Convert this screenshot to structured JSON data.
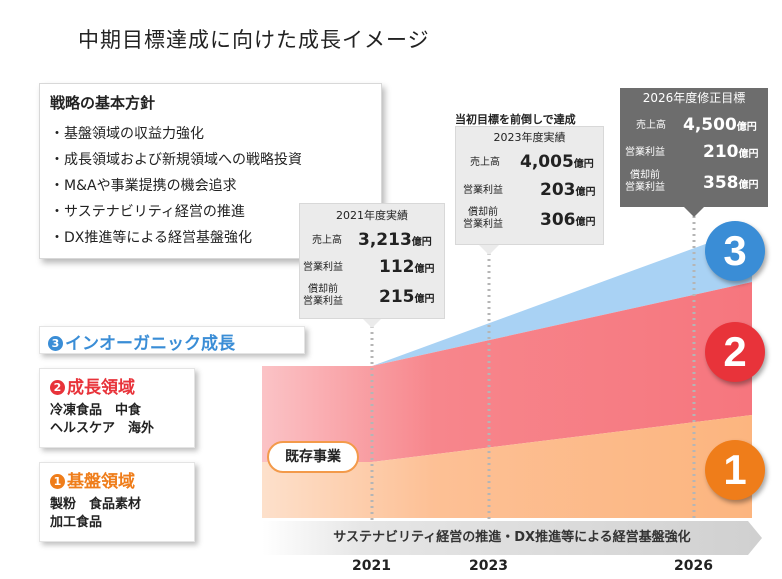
{
  "title": "中期目標達成に向けた成長イメージ",
  "strategy": {
    "heading": "戦略の基本方針",
    "items": [
      "・基盤領域の収益力強化",
      "・成長領域および新規領域への戦略投資",
      "・M&Aや事業提携の機会追求",
      "・サステナビリティ経営の推進",
      "・DX推進等による経営基盤強化"
    ]
  },
  "panels": {
    "p2021": {
      "year": "2021年度実績",
      "sales_label": "売上高",
      "sales": "3,213",
      "op_label": "営業利益",
      "op": "112",
      "ebitda_label_1": "償却前",
      "ebitda_label_2": "営業利益",
      "ebitda": "215",
      "unit": "億円"
    },
    "p2023": {
      "note": "当初目標を前倒しで達成",
      "year": "2023年度実績",
      "sales_label": "売上高",
      "sales": "4,005",
      "op_label": "営業利益",
      "op": "203",
      "ebitda_label_1": "償却前",
      "ebitda_label_2": "営業利益",
      "ebitda": "306",
      "unit": "億円"
    },
    "p2026": {
      "year": "2026年度修正目標",
      "sales_label": "売上高",
      "sales": "4,500",
      "op_label": "営業利益",
      "op": "210",
      "ebitda_label_1": "償却前",
      "ebitda_label_2": "営業利益",
      "ebitda": "358",
      "unit": "億円"
    }
  },
  "categories": {
    "c3": {
      "num": "3",
      "name": "インオーガニック成長",
      "color": "#3a8dd6"
    },
    "c2": {
      "num": "2",
      "name": "成長領域",
      "line1": "冷凍食品　中食",
      "line2": "ヘルスケア　海外",
      "color": "#e8333a"
    },
    "c1": {
      "num": "1",
      "name": "基盤領域",
      "line1": "製粉　食品素材",
      "line2": "加工食品",
      "color": "#ef7d1a"
    }
  },
  "existing": "既存事業",
  "banner": "サステナビリティ経営の推進・DX推進等による経営基盤強化",
  "years": [
    "2021",
    "2023",
    "2026"
  ],
  "colors": {
    "base_band": "#fdc095",
    "growth_band": "#f7828a",
    "inorganic_band": "#a9d2f4",
    "panel_dark": "#6d6d6d"
  }
}
